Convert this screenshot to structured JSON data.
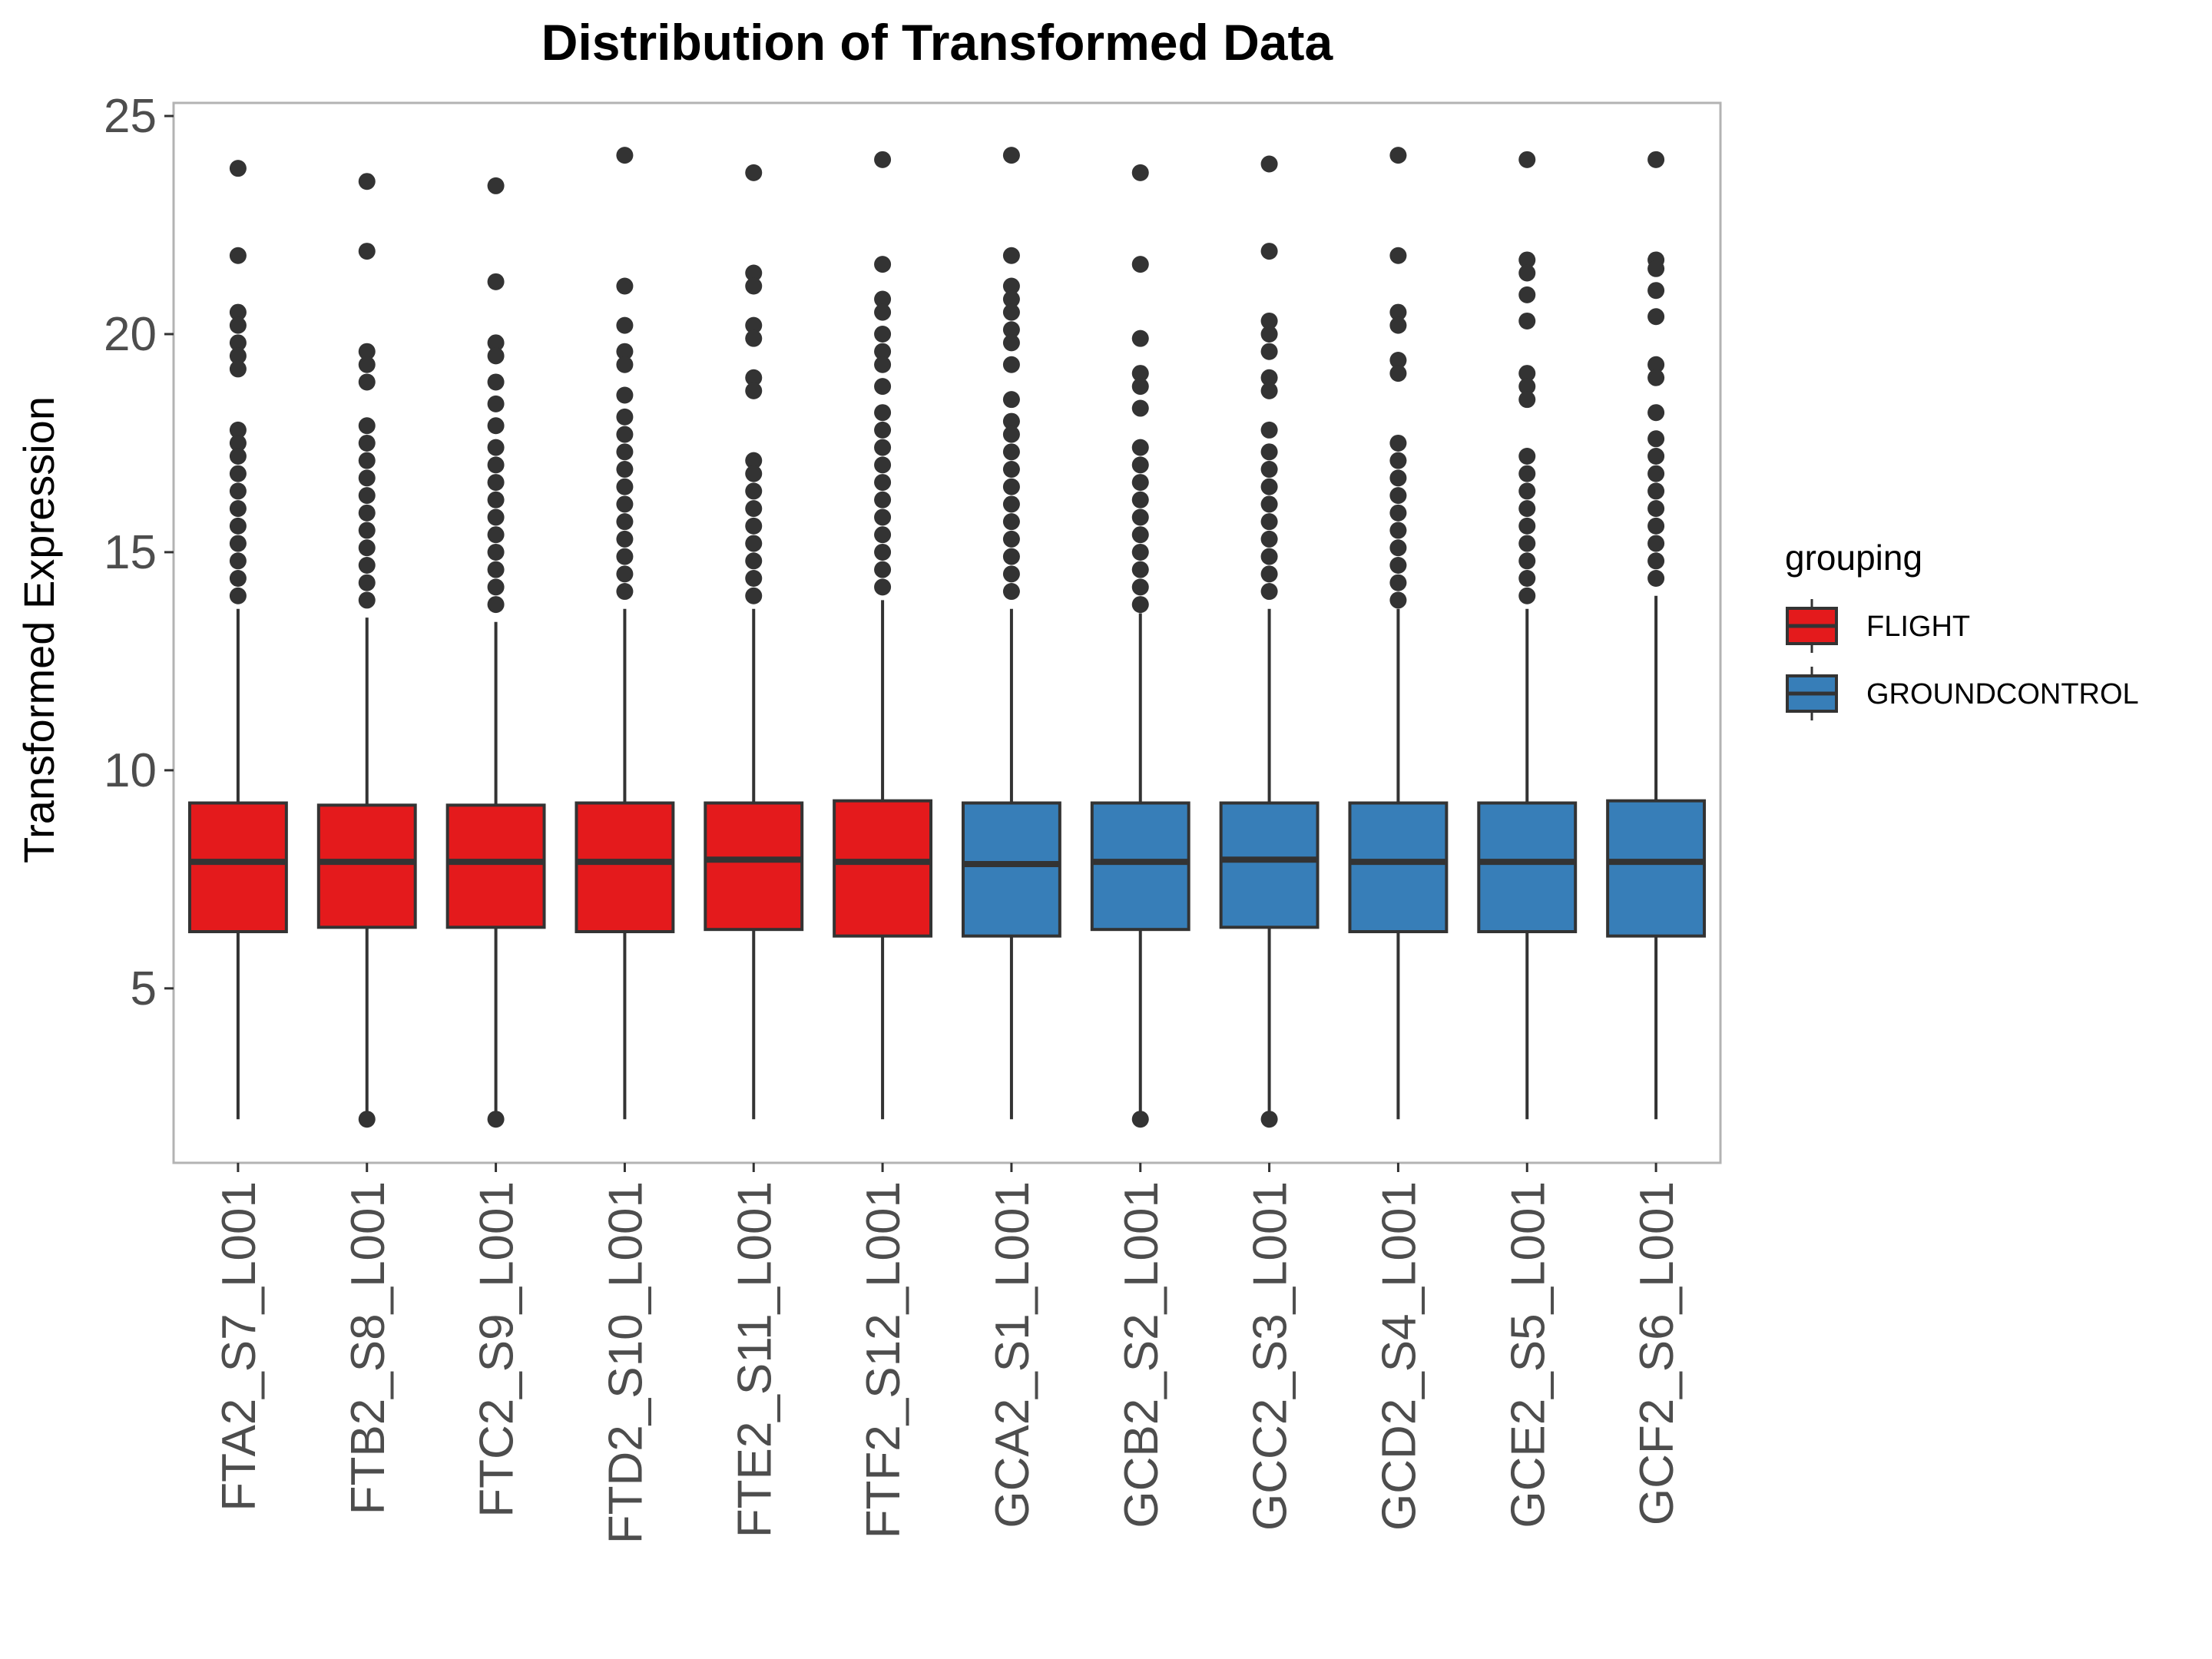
{
  "colors": {
    "FLIGHT": "#e41a1c",
    "GROUNDCONTROL": "#377eb8",
    "stroke": "#333333",
    "panel_border": "#b3b3b3",
    "tick_text": "#4d4d4d"
  },
  "chart_data": {
    "type": "boxplot",
    "title": "Distribution of Transformed Data",
    "xlabel": "",
    "ylabel": "Transformed Expression",
    "ylim": [
      1.0,
      25.3
    ],
    "yticks": [
      5,
      10,
      15,
      20,
      25
    ],
    "grid": false,
    "legend": {
      "title": "grouping",
      "position": "right",
      "entries": [
        "FLIGHT",
        "GROUNDCONTROL"
      ]
    },
    "categories": [
      "FTA2_S7_L001",
      "FTB2_S8_L001",
      "FTC2_S9_L001",
      "FTD2_S10_L001",
      "FTE2_S11_L001",
      "FTF2_S12_L001",
      "GCA2_S1_L001",
      "GCB2_S2_L001",
      "GCC2_S3_L001",
      "GCD2_S4_L001",
      "GCE2_S5_L001",
      "GCF2_S6_L001"
    ],
    "boxes": [
      {
        "sample": "FTA2_S7_L001",
        "group": "FLIGHT",
        "min": 2.0,
        "q1": 6.3,
        "median": 7.9,
        "q3": 9.25,
        "whisker_high": 13.7,
        "outliers": [
          23.8,
          21.8,
          20.5,
          20.2,
          19.8,
          19.5,
          19.2,
          17.8,
          17.5,
          17.2,
          16.8,
          16.4,
          16.0,
          15.6,
          15.2,
          14.8,
          14.4,
          14.0
        ]
      },
      {
        "sample": "FTB2_S8_L001",
        "group": "FLIGHT",
        "min": 2.0,
        "q1": 6.4,
        "median": 7.9,
        "q3": 9.2,
        "whisker_high": 13.5,
        "outliers": [
          23.5,
          21.9,
          19.6,
          19.3,
          18.9,
          17.9,
          17.5,
          17.1,
          16.7,
          16.3,
          15.9,
          15.5,
          15.1,
          14.7,
          14.3,
          13.9,
          2.0
        ]
      },
      {
        "sample": "FTC2_S9_L001",
        "group": "FLIGHT",
        "min": 2.0,
        "q1": 6.4,
        "median": 7.9,
        "q3": 9.2,
        "whisker_high": 13.4,
        "outliers": [
          23.4,
          21.2,
          19.8,
          19.5,
          18.9,
          18.4,
          17.9,
          17.4,
          17.0,
          16.6,
          16.2,
          15.8,
          15.4,
          15.0,
          14.6,
          14.2,
          13.8,
          2.0
        ]
      },
      {
        "sample": "FTD2_S10_L001",
        "group": "FLIGHT",
        "min": 2.0,
        "q1": 6.3,
        "median": 7.9,
        "q3": 9.25,
        "whisker_high": 13.7,
        "outliers": [
          24.1,
          21.1,
          20.2,
          19.6,
          19.3,
          18.6,
          18.1,
          17.7,
          17.3,
          16.9,
          16.5,
          16.1,
          15.7,
          15.3,
          14.9,
          14.5,
          14.1
        ]
      },
      {
        "sample": "FTE2_S11_L001",
        "group": "FLIGHT",
        "min": 2.0,
        "q1": 6.35,
        "median": 7.95,
        "q3": 9.25,
        "whisker_high": 13.7,
        "outliers": [
          23.7,
          21.4,
          21.1,
          20.2,
          19.9,
          19.0,
          18.7,
          17.1,
          16.8,
          16.4,
          16.0,
          15.6,
          15.2,
          14.8,
          14.4,
          14.0
        ]
      },
      {
        "sample": "FTF2_S12_L001",
        "group": "FLIGHT",
        "min": 2.0,
        "q1": 6.2,
        "median": 7.9,
        "q3": 9.3,
        "whisker_high": 13.9,
        "outliers": [
          24.0,
          21.6,
          20.8,
          20.5,
          20.0,
          19.6,
          19.3,
          18.8,
          18.2,
          17.8,
          17.4,
          17.0,
          16.6,
          16.2,
          15.8,
          15.4,
          15.0,
          14.6,
          14.2
        ]
      },
      {
        "sample": "GCA2_S1_L001",
        "group": "GROUNDCONTROL",
        "min": 2.0,
        "q1": 6.2,
        "median": 7.85,
        "q3": 9.25,
        "whisker_high": 13.7,
        "outliers": [
          24.1,
          21.8,
          21.1,
          20.8,
          20.5,
          20.1,
          19.8,
          19.3,
          18.5,
          18.0,
          17.7,
          17.3,
          16.9,
          16.5,
          16.1,
          15.7,
          15.3,
          14.9,
          14.5,
          14.1
        ]
      },
      {
        "sample": "GCB2_S2_L001",
        "group": "GROUNDCONTROL",
        "min": 2.0,
        "q1": 6.35,
        "median": 7.9,
        "q3": 9.25,
        "whisker_high": 13.6,
        "outliers": [
          23.7,
          21.6,
          19.9,
          19.1,
          18.8,
          18.3,
          17.4,
          17.0,
          16.6,
          16.2,
          15.8,
          15.4,
          15.0,
          14.6,
          14.2,
          13.8,
          2.0
        ]
      },
      {
        "sample": "GCC2_S3_L001",
        "group": "GROUNDCONTROL",
        "min": 2.0,
        "q1": 6.4,
        "median": 7.95,
        "q3": 9.25,
        "whisker_high": 13.7,
        "outliers": [
          23.9,
          21.9,
          20.3,
          20.0,
          19.6,
          19.0,
          18.7,
          17.8,
          17.3,
          16.9,
          16.5,
          16.1,
          15.7,
          15.3,
          14.9,
          14.5,
          14.1,
          2.0
        ]
      },
      {
        "sample": "GCD2_S4_L001",
        "group": "GROUNDCONTROL",
        "min": 2.0,
        "q1": 6.3,
        "median": 7.9,
        "q3": 9.25,
        "whisker_high": 13.7,
        "outliers": [
          24.1,
          21.8,
          20.5,
          20.2,
          19.4,
          19.1,
          17.5,
          17.1,
          16.7,
          16.3,
          15.9,
          15.5,
          15.1,
          14.7,
          14.3,
          13.9
        ]
      },
      {
        "sample": "GCE2_S5_L001",
        "group": "GROUNDCONTROL",
        "min": 2.0,
        "q1": 6.3,
        "median": 7.9,
        "q3": 9.25,
        "whisker_high": 13.7,
        "outliers": [
          24.0,
          21.7,
          21.4,
          20.9,
          20.3,
          19.1,
          18.8,
          18.5,
          17.2,
          16.8,
          16.4,
          16.0,
          15.6,
          15.2,
          14.8,
          14.4,
          14.0
        ]
      },
      {
        "sample": "GCF2_S6_L001",
        "group": "GROUNDCONTROL",
        "min": 2.0,
        "q1": 6.2,
        "median": 7.9,
        "q3": 9.3,
        "whisker_high": 14.0,
        "outliers": [
          24.0,
          21.7,
          21.5,
          21.0,
          20.4,
          19.3,
          19.0,
          18.2,
          17.6,
          17.2,
          16.8,
          16.4,
          16.0,
          15.6,
          15.2,
          14.8,
          14.4
        ]
      }
    ]
  }
}
